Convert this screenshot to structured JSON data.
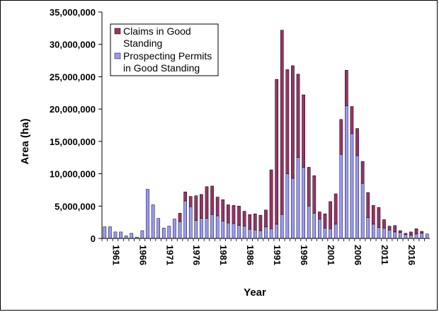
{
  "chart_data": {
    "type": "bar",
    "stacked": true,
    "title": "",
    "xlabel": "Year",
    "ylabel": "Area (ha)",
    "ylim": [
      0,
      35000000
    ],
    "yticks": [
      0,
      5000000,
      10000000,
      15000000,
      20000000,
      25000000,
      30000000,
      35000000
    ],
    "ytick_labels": [
      "0",
      "5,000,000",
      "10,000,000",
      "15,000,000",
      "20,000,000",
      "25,000,000",
      "30,000,000",
      "35,000,000"
    ],
    "xtick_labels": [
      "1961",
      "1966",
      "1971",
      "1976",
      "1981",
      "1986",
      "1991",
      "1996",
      "2001",
      "2006",
      "2011",
      "2016"
    ],
    "grid": false,
    "legend_position": "top-left",
    "categories": [
      1960,
      1961,
      1962,
      1963,
      1964,
      1965,
      1966,
      1967,
      1968,
      1969,
      1970,
      1971,
      1972,
      1973,
      1974,
      1975,
      1976,
      1977,
      1978,
      1979,
      1980,
      1981,
      1982,
      1983,
      1984,
      1985,
      1986,
      1987,
      1988,
      1989,
      1990,
      1991,
      1992,
      1993,
      1994,
      1995,
      1996,
      1997,
      1998,
      1999,
      2000,
      2001,
      2002,
      2003,
      2004,
      2005,
      2006,
      2007,
      2008,
      2009,
      2010,
      2011,
      2012,
      2013,
      2014,
      2015,
      2016,
      2017,
      2018,
      2019,
      2020
    ],
    "series": [
      {
        "name": "Prospecting Permits in Good Standing",
        "color": "#9999ff",
        "values": [
          1800000,
          1800000,
          1000000,
          1000000,
          400000,
          800000,
          200000,
          1200000,
          7600000,
          5200000,
          3100000,
          1600000,
          1900000,
          3000000,
          2600000,
          5800000,
          4900000,
          2800000,
          3100000,
          3100000,
          3700000,
          3500000,
          2700000,
          2400000,
          2300000,
          2000000,
          1900000,
          1400000,
          1300000,
          1200000,
          1800000,
          1500000,
          2200000,
          3700000,
          10000000,
          9300000,
          12500000,
          11000000,
          5000000,
          3900000,
          3000000,
          1600000,
          1500000,
          2200000,
          13000000,
          20500000,
          16200000,
          12800000,
          8500000,
          3200000,
          2200000,
          1700000,
          1600000,
          1300000,
          1000000,
          900000,
          600000,
          500000,
          700000,
          800000,
          700000
        ]
      },
      {
        "name": "Claims in Good Standing",
        "color": "#993366",
        "values": [
          0,
          0,
          0,
          0,
          0,
          0,
          0,
          0,
          0,
          0,
          0,
          0,
          0,
          0,
          1300000,
          1400000,
          1600000,
          3800000,
          3700000,
          4900000,
          4400000,
          2900000,
          3300000,
          2800000,
          2800000,
          3000000,
          2300000,
          2300000,
          2500000,
          2400000,
          2600000,
          9100000,
          22400000,
          28500000,
          16100000,
          17400000,
          12900000,
          11200000,
          6000000,
          5800000,
          1100000,
          2200000,
          4200000,
          4700000,
          5400000,
          5500000,
          4200000,
          4200000,
          3400000,
          3900000,
          2900000,
          3100000,
          1300000,
          600000,
          1000000,
          300000,
          200000,
          500000,
          800000,
          300000,
          0
        ]
      }
    ]
  }
}
